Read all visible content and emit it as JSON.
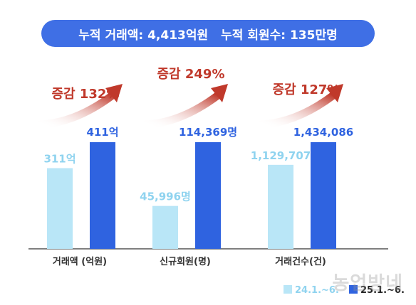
{
  "banner": {
    "part1": "누적 거래액: 4,413억원",
    "part2": "누적 회원수: 135만명"
  },
  "watermark": "농업방네",
  "colors": {
    "banner": "#3f6fe5",
    "prev": "#b9e6f7",
    "curr": "#2f63e0",
    "prev_label": "#8fd3ef",
    "curr_label": "#2f63e0",
    "growth": "#c0392b",
    "axis": "#555555"
  },
  "chart_data": {
    "type": "bar",
    "categories": [
      "거래액 (억원)",
      "신규회원(명)",
      "거래건수(건)"
    ],
    "series": [
      {
        "name": "24.1.~6.",
        "value_labels": [
          "311억",
          "45,996명",
          "1,129,707"
        ],
        "values": [
          311,
          45996,
          1129707
        ]
      },
      {
        "name": "25.1.~6.",
        "value_labels": [
          "411억",
          "114,369명",
          "1,434,086"
        ],
        "values": [
          411,
          114369,
          1434086
        ]
      }
    ],
    "growth_labels": [
      "증감 132%",
      "증감 249%",
      "증감 127%"
    ],
    "legend_position": "bottom-right",
    "grid": false,
    "note": "each category drawn on its own scale"
  }
}
